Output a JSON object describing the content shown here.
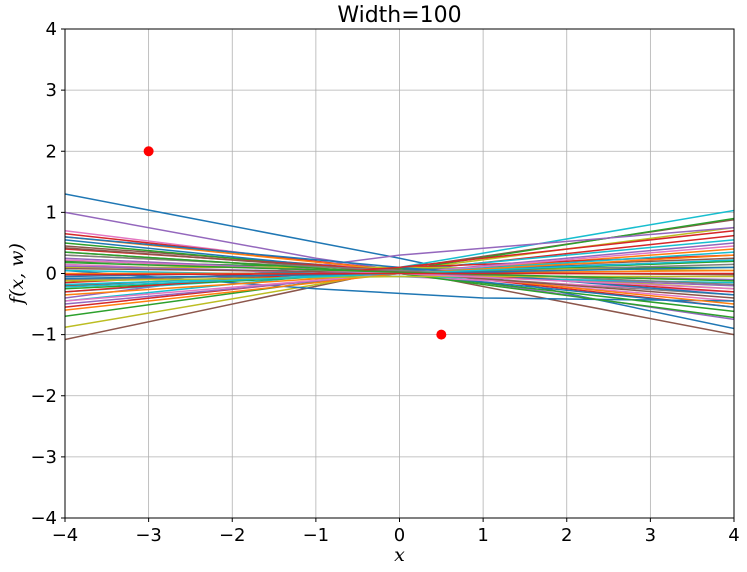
{
  "chart_data": {
    "type": "line",
    "title": "Width=100",
    "xlabel": "x",
    "ylabel": "f(x, w)",
    "xlim": [
      -4,
      4
    ],
    "ylim": [
      -4,
      4
    ],
    "xticks": [
      -4,
      -3,
      -2,
      -1,
      0,
      1,
      2,
      3,
      4
    ],
    "yticks": [
      -4,
      -3,
      -2,
      -1,
      0,
      1,
      2,
      3,
      4
    ],
    "xtick_labels": [
      "−4",
      "−3",
      "−2",
      "−1",
      "0",
      "1",
      "2",
      "3",
      "4"
    ],
    "ytick_labels": [
      "−4",
      "−3",
      "−2",
      "−1",
      "0",
      "1",
      "2",
      "3",
      "4"
    ],
    "grid": true,
    "legend": "none",
    "series": [
      {
        "color": "#1f77b4",
        "points": [
          [
            -4,
            1.3
          ],
          [
            0,
            0.25
          ],
          [
            4,
            -0.9
          ]
        ]
      },
      {
        "color": "#9467bd",
        "points": [
          [
            -4,
            1.0
          ],
          [
            -1,
            0.25
          ],
          [
            4,
            -0.75
          ]
        ]
      },
      {
        "color": "#8c564b",
        "points": [
          [
            -4,
            -1.08
          ],
          [
            0,
            0.08
          ],
          [
            4,
            0.88
          ]
        ]
      },
      {
        "color": "#bcbd22",
        "points": [
          [
            -4,
            -0.88
          ],
          [
            0,
            0.05
          ],
          [
            4,
            0.75
          ]
        ]
      },
      {
        "color": "#17becf",
        "points": [
          [
            -4,
            -0.45
          ],
          [
            0,
            0.1
          ],
          [
            4,
            1.03
          ]
        ]
      },
      {
        "color": "#8c564b",
        "points": [
          [
            -4,
            0.45
          ],
          [
            0,
            0.05
          ],
          [
            4,
            -1.0
          ]
        ]
      },
      {
        "color": "#2ca02c",
        "points": [
          [
            -4,
            -0.7
          ],
          [
            0,
            0.05
          ],
          [
            4,
            0.9
          ]
        ]
      },
      {
        "color": "#e377c2",
        "points": [
          [
            -4,
            0.7
          ],
          [
            0,
            0.02
          ],
          [
            4,
            -0.45
          ]
        ]
      },
      {
        "color": "#d62728",
        "points": [
          [
            -4,
            0.65
          ],
          [
            0,
            0.05
          ],
          [
            4,
            -0.55
          ]
        ]
      },
      {
        "color": "#1f77b4",
        "points": [
          [
            -4,
            0.05
          ],
          [
            -1,
            -0.25
          ],
          [
            1,
            -0.4
          ],
          [
            4,
            -0.45
          ]
        ]
      },
      {
        "color": "#9467bd",
        "points": [
          [
            -4,
            -0.4
          ],
          [
            0,
            0.3
          ],
          [
            4,
            0.75
          ]
        ]
      },
      {
        "color": "#ff7f0e",
        "points": [
          [
            -4,
            0.6
          ],
          [
            0,
            0.05
          ],
          [
            4,
            -0.5
          ]
        ]
      },
      {
        "color": "#2ca02c",
        "points": [
          [
            -4,
            0.5
          ],
          [
            0,
            0.0
          ],
          [
            4,
            -0.62
          ]
        ]
      },
      {
        "color": "#1f77b4",
        "points": [
          [
            -4,
            0.55
          ],
          [
            0,
            0.0
          ],
          [
            4,
            -0.55
          ]
        ]
      },
      {
        "color": "#d62728",
        "points": [
          [
            -4,
            -0.55
          ],
          [
            0,
            0.03
          ],
          [
            4,
            0.62
          ]
        ]
      },
      {
        "color": "#7f7f7f",
        "points": [
          [
            -4,
            0.35
          ],
          [
            0,
            0.0
          ],
          [
            4,
            -0.35
          ]
        ]
      },
      {
        "color": "#17becf",
        "points": [
          [
            -4,
            -0.3
          ],
          [
            0,
            0.05
          ],
          [
            4,
            0.55
          ]
        ]
      },
      {
        "color": "#bcbd22",
        "points": [
          [
            -4,
            0.3
          ],
          [
            0,
            0.05
          ],
          [
            4,
            -0.25
          ]
        ]
      },
      {
        "color": "#ff7f0e",
        "points": [
          [
            -4,
            -0.35
          ],
          [
            0,
            0.0
          ],
          [
            4,
            0.4
          ]
        ]
      },
      {
        "color": "#2ca02c",
        "points": [
          [
            -4,
            0.2
          ],
          [
            0,
            0.08
          ],
          [
            4,
            0.1
          ]
        ]
      },
      {
        "color": "#d62728",
        "points": [
          [
            -4,
            -0.15
          ],
          [
            0,
            0.1
          ],
          [
            4,
            0.3
          ]
        ]
      },
      {
        "color": "#9467bd",
        "points": [
          [
            -4,
            0.25
          ],
          [
            0,
            0.0
          ],
          [
            4,
            -0.2
          ]
        ]
      },
      {
        "color": "#8c564b",
        "points": [
          [
            -4,
            -0.2
          ],
          [
            0,
            0.05
          ],
          [
            4,
            0.25
          ]
        ]
      },
      {
        "color": "#e377c2",
        "points": [
          [
            -4,
            0.15
          ],
          [
            0,
            -0.05
          ],
          [
            4,
            -0.3
          ]
        ]
      },
      {
        "color": "#7f7f7f",
        "points": [
          [
            -4,
            -0.1
          ],
          [
            0,
            0.0
          ],
          [
            4,
            0.15
          ]
        ]
      },
      {
        "color": "#bcbd22",
        "points": [
          [
            -4,
            0.1
          ],
          [
            0,
            0.1
          ],
          [
            4,
            0.05
          ]
        ]
      },
      {
        "color": "#17becf",
        "points": [
          [
            -4,
            0.05
          ],
          [
            0,
            -0.05
          ],
          [
            4,
            -0.15
          ]
        ]
      },
      {
        "color": "#1f77b4",
        "points": [
          [
            -4,
            -0.05
          ],
          [
            0,
            0.05
          ],
          [
            4,
            0.2
          ]
        ]
      },
      {
        "color": "#ff7f0e",
        "points": [
          [
            -4,
            0.0
          ],
          [
            0,
            0.0
          ],
          [
            4,
            0.05
          ]
        ]
      },
      {
        "color": "#2ca02c",
        "points": [
          [
            -4,
            -0.25
          ],
          [
            0,
            0.0
          ],
          [
            4,
            0.2
          ]
        ]
      },
      {
        "color": "#d62728",
        "points": [
          [
            -4,
            0.4
          ],
          [
            0,
            0.05
          ],
          [
            4,
            -0.3
          ]
        ]
      },
      {
        "color": "#9467bd",
        "points": [
          [
            -4,
            -0.5
          ],
          [
            0,
            0.0
          ],
          [
            4,
            0.5
          ]
        ]
      },
      {
        "color": "#8c564b",
        "points": [
          [
            -4,
            0.42
          ],
          [
            0,
            0.02
          ],
          [
            4,
            -0.4
          ]
        ]
      },
      {
        "color": "#e377c2",
        "points": [
          [
            -4,
            -0.45
          ],
          [
            0,
            0.0
          ],
          [
            4,
            0.45
          ]
        ]
      },
      {
        "color": "#7f7f7f",
        "points": [
          [
            -4,
            0.3
          ],
          [
            0,
            0.05
          ],
          [
            4,
            -0.18
          ]
        ]
      },
      {
        "color": "#17becf",
        "points": [
          [
            -4,
            -0.18
          ],
          [
            0,
            0.0
          ],
          [
            4,
            0.35
          ]
        ]
      },
      {
        "color": "#1f77b4",
        "points": [
          [
            -4,
            0.6
          ],
          [
            0,
            0.1
          ],
          [
            4,
            -0.35
          ]
        ]
      },
      {
        "color": "#d62728",
        "points": [
          [
            -4,
            -0.3
          ],
          [
            0,
            0.1
          ],
          [
            4,
            0.7
          ]
        ]
      },
      {
        "color": "#2ca02c",
        "points": [
          [
            -4,
            0.35
          ],
          [
            0,
            0.0
          ],
          [
            4,
            -0.72
          ]
        ]
      },
      {
        "color": "#ff7f0e",
        "points": [
          [
            -4,
            -0.6
          ],
          [
            0,
            0.0
          ],
          [
            4,
            0.3
          ]
        ]
      },
      {
        "color": "#9467bd",
        "points": [
          [
            -4,
            0.12
          ],
          [
            0,
            0.0
          ],
          [
            4,
            -0.1
          ]
        ]
      },
      {
        "color": "#bcbd22",
        "points": [
          [
            -4,
            -0.12
          ],
          [
            0,
            -0.05
          ],
          [
            4,
            -0.05
          ]
        ]
      },
      {
        "color": "#8c564b",
        "points": [
          [
            -4,
            0.08
          ],
          [
            0,
            0.02
          ],
          [
            4,
            -0.02
          ]
        ]
      },
      {
        "color": "#1f77b4",
        "points": [
          [
            -4,
            -0.08
          ],
          [
            0,
            0.0
          ],
          [
            4,
            0.1
          ]
        ]
      },
      {
        "color": "#e377c2",
        "points": [
          [
            -4,
            0.22
          ],
          [
            0,
            0.0
          ],
          [
            4,
            -0.25
          ]
        ]
      },
      {
        "color": "#17becf",
        "points": [
          [
            -4,
            -0.22
          ],
          [
            0,
            0.0
          ],
          [
            4,
            0.22
          ]
        ]
      },
      {
        "color": "#2ca02c",
        "points": [
          [
            -4,
            0.18
          ],
          [
            0,
            0.02
          ],
          [
            4,
            -0.12
          ]
        ]
      },
      {
        "color": "#d62728",
        "points": [
          [
            -4,
            -0.02
          ],
          [
            0,
            0.0
          ],
          [
            4,
            0.0
          ]
        ]
      }
    ],
    "scatter": {
      "color": "#ff0000",
      "points": [
        [
          -3,
          2
        ],
        [
          0.5,
          -1
        ]
      ]
    }
  }
}
